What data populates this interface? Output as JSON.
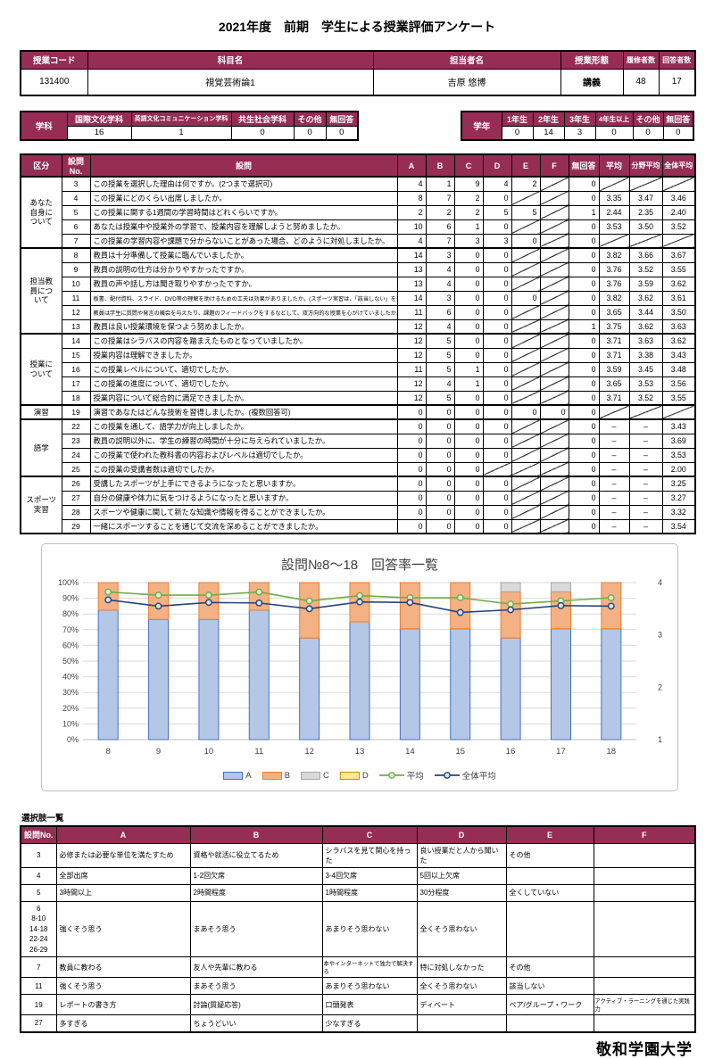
{
  "page": {
    "title": "2021年度　前期　学生による授業評価アンケート",
    "footer": "敬和学園大学"
  },
  "colors": {
    "header_bg": "#962D55",
    "header_text": "#FFFFFF",
    "series_a_fill": "#B4C7E7",
    "series_a_border": "#4472C4",
    "series_b_fill": "#F4B183",
    "series_b_border": "#ED7D31",
    "series_c_fill": "#D9D9D9",
    "series_c_border": "#A6A6A6",
    "series_d_fill": "#FFE699",
    "series_d_border": "#BF9000",
    "avg_line": "#70AD47",
    "overall_avg_line": "#264478"
  },
  "course_info": {
    "headers": [
      "授業コード",
      "科目名",
      "担当者名",
      "授業形態",
      "履修者数",
      "回答者数"
    ],
    "values": [
      "131400",
      "視覚芸術論1",
      "吉原 悠博",
      "講義",
      "48",
      "17"
    ]
  },
  "department_table": {
    "label": "学科",
    "columns": [
      "国際文化学科",
      "英語文化コミュニケーション学科",
      "共生社会学科",
      "その他",
      "無回答"
    ],
    "values": [
      "16",
      "1",
      "0",
      "0",
      "0"
    ]
  },
  "grade_table": {
    "label": "学年",
    "columns": [
      "1年生",
      "2年生",
      "3年生",
      "4年生以上",
      "その他",
      "無回答"
    ],
    "values": [
      "0",
      "14",
      "3",
      "0",
      "0",
      "0"
    ]
  },
  "main_table": {
    "headers": [
      "区分",
      "設問No.",
      "設問",
      "A",
      "B",
      "C",
      "D",
      "E",
      "F",
      "無回答",
      "平均",
      "分野平均",
      "全体平均"
    ],
    "sections": [
      {
        "label": "あなた\n自身に\nついて",
        "rows": [
          {
            "no": "3",
            "q": "この授業を選択した理由は何ですか。(2つまで選択可)",
            "values": [
              "4",
              "1",
              "9",
              "4",
              "2",
              "\\",
              "0",
              "\\",
              "\\",
              "\\"
            ]
          },
          {
            "no": "4",
            "q": "この授業にどのくらい出席しましたか。",
            "values": [
              "8",
              "7",
              "2",
              "0",
              "\\",
              "\\",
              "0",
              "3.35",
              "3.47",
              "3.46"
            ]
          },
          {
            "no": "5",
            "q": "この授業に関する1週間の学習時間はどれくらいですか。",
            "values": [
              "2",
              "2",
              "2",
              "5",
              "5",
              "\\",
              "1",
              "2.44",
              "2.35",
              "2.40"
            ]
          },
          {
            "no": "6",
            "q": "あなたは授業中や授業外の学習で、授業内容を理解しようと努めましたか。",
            "values": [
              "10",
              "6",
              "1",
              "0",
              "\\",
              "\\",
              "0",
              "3.53",
              "3.50",
              "3.52"
            ]
          },
          {
            "no": "7",
            "q": "この授業の学習内容や課題で分からないことがあった場合、どのように対処しましたか。",
            "values": [
              "4",
              "7",
              "3",
              "3",
              "0",
              "\\",
              "0",
              "\\",
              "\\",
              "\\"
            ]
          }
        ]
      },
      {
        "label": "担当教\n員につ\nいて",
        "rows": [
          {
            "no": "8",
            "q": "教員は十分準備して授業に臨んでいましたか。",
            "values": [
              "14",
              "3",
              "0",
              "0",
              "\\",
              "\\",
              "0",
              "3.82",
              "3.66",
              "3.67"
            ]
          },
          {
            "no": "9",
            "q": "教員の説明の仕方は分かりやすかったですか。",
            "values": [
              "13",
              "4",
              "0",
              "0",
              "\\",
              "\\",
              "0",
              "3.76",
              "3.52",
              "3.55"
            ]
          },
          {
            "no": "10",
            "q": "教員の声や話し方は聞き取りやすかったですか。",
            "values": [
              "13",
              "4",
              "0",
              "0",
              "\\",
              "\\",
              "0",
              "3.76",
              "3.59",
              "3.62"
            ]
          },
          {
            "no": "11",
            "q": "板書、配付資料、スライド、DVD等の理解を助けるための工夫は効果がありましたか。(スポーツ実習は、「該当しない」を選んでください)",
            "values": [
              "14",
              "3",
              "0",
              "0",
              "0",
              "\\",
              "0",
              "3.82",
              "3.62",
              "3.61"
            ]
          },
          {
            "no": "12",
            "q": "教員は学生に質問や発言の機会を与えたり、課題のフィードバックをするなどして、双方向的な授業を心がけていましたか。",
            "values": [
              "11",
              "6",
              "0",
              "0",
              "\\",
              "\\",
              "0",
              "3.65",
              "3.44",
              "3.50"
            ]
          },
          {
            "no": "13",
            "q": "教員は良い授業環境を保つよう努めましたか。",
            "values": [
              "12",
              "4",
              "0",
              "0",
              "\\",
              "\\",
              "1",
              "3.75",
              "3.62",
              "3.63"
            ]
          }
        ]
      },
      {
        "label": "授業に\nついて",
        "rows": [
          {
            "no": "14",
            "q": "この授業はシラバスの内容を踏まえたものとなっていましたか。",
            "values": [
              "12",
              "5",
              "0",
              "0",
              "\\",
              "\\",
              "0",
              "3.71",
              "3.63",
              "3.62"
            ]
          },
          {
            "no": "15",
            "q": "授業内容は理解できましたか。",
            "values": [
              "12",
              "5",
              "0",
              "0",
              "\\",
              "\\",
              "0",
              "3.71",
              "3.38",
              "3.43"
            ]
          },
          {
            "no": "16",
            "q": "この授業レベルについて、適切でしたか。",
            "values": [
              "11",
              "5",
              "1",
              "0",
              "\\",
              "\\",
              "0",
              "3.59",
              "3.45",
              "3.48"
            ]
          },
          {
            "no": "17",
            "q": "この授業の進度について、適切でしたか。",
            "values": [
              "12",
              "4",
              "1",
              "0",
              "\\",
              "\\",
              "0",
              "3.65",
              "3.53",
              "3.56"
            ]
          },
          {
            "no": "18",
            "q": "授業内容について総合的に満足できましたか。",
            "values": [
              "12",
              "5",
              "0",
              "0",
              "\\",
              "\\",
              "0",
              "3.71",
              "3.52",
              "3.55"
            ]
          }
        ]
      },
      {
        "label": "演習",
        "rows": [
          {
            "no": "19",
            "q": "演習であなたはどんな技術を習得しましたか。(複数回答可)",
            "values": [
              "0",
              "0",
              "0",
              "0",
              "0",
              "0",
              "0",
              "\\",
              "\\",
              "\\"
            ]
          }
        ]
      },
      {
        "label": "語学",
        "rows": [
          {
            "no": "22",
            "q": "この授業を通して、語学力が向上しましたか。",
            "values": [
              "0",
              "0",
              "0",
              "0",
              "\\",
              "\\",
              "0",
              "–",
              "–",
              "3.43"
            ]
          },
          {
            "no": "23",
            "q": "教員の説明以外に、学生の練習の時間が十分に与えられていましたか。",
            "values": [
              "0",
              "0",
              "0",
              "0",
              "\\",
              "\\",
              "0",
              "–",
              "–",
              "3.69"
            ]
          },
          {
            "no": "24",
            "q": "この授業で使われた教科書の内容およびレベルは適切でしたか。",
            "values": [
              "0",
              "0",
              "0",
              "0",
              "\\",
              "\\",
              "0",
              "–",
              "–",
              "3.53"
            ]
          },
          {
            "no": "25",
            "q": "この授業の受講者数は適切でしたか。",
            "values": [
              "0",
              "0",
              "0",
              "\\",
              "\\",
              "\\",
              "0",
              "–",
              "–",
              "2.00"
            ]
          }
        ]
      },
      {
        "label": "スポーツ\n実習",
        "rows": [
          {
            "no": "26",
            "q": "受講したスポーツが上手にできるようになったと思いますか。",
            "values": [
              "0",
              "0",
              "0",
              "0",
              "\\",
              "\\",
              "0",
              "–",
              "–",
              "3.25"
            ]
          },
          {
            "no": "27",
            "q": "自分の健康や体力に気をつけるようになったと思いますか。",
            "values": [
              "0",
              "0",
              "0",
              "0",
              "\\",
              "\\",
              "0",
              "–",
              "–",
              "3.27"
            ]
          },
          {
            "no": "28",
            "q": "スポーツや健康に関して新たな知識や情報を得ることができましたか。",
            "values": [
              "0",
              "0",
              "0",
              "0",
              "\\",
              "\\",
              "0",
              "–",
              "–",
              "3.32"
            ]
          },
          {
            "no": "29",
            "q": "一緒にスポーツすることを通じて交流を深めることができましたか。",
            "values": [
              "0",
              "0",
              "0",
              "0",
              "\\",
              "\\",
              "0",
              "–",
              "–",
              "3.54"
            ]
          }
        ]
      }
    ]
  },
  "chart_data": {
    "type": "bar",
    "subtype": "100%-stacked-bar-with-lines",
    "title": "設問№8～18　回答率一覧",
    "categories": [
      "8",
      "9",
      "10",
      "11",
      "12",
      "13",
      "14",
      "15",
      "16",
      "17",
      "18"
    ],
    "bar_series": [
      {
        "name": "A",
        "fill": "#B4C7E7",
        "border": "#4472C4",
        "values": [
          82.4,
          76.5,
          76.5,
          82.4,
          64.7,
          75.0,
          70.6,
          70.6,
          64.7,
          70.6,
          70.6
        ]
      },
      {
        "name": "B",
        "fill": "#F4B183",
        "border": "#ED7D31",
        "values": [
          17.6,
          23.5,
          23.5,
          17.6,
          35.3,
          25.0,
          29.4,
          29.4,
          29.4,
          23.5,
          29.4
        ]
      },
      {
        "name": "C",
        "fill": "#D9D9D9",
        "border": "#A6A6A6",
        "values": [
          0,
          0,
          0,
          0,
          0,
          0,
          0,
          0,
          5.9,
          5.9,
          0
        ]
      },
      {
        "name": "D",
        "fill": "#FFE699",
        "border": "#BF9000",
        "values": [
          0,
          0,
          0,
          0,
          0,
          0,
          0,
          0,
          0,
          0,
          0
        ]
      }
    ],
    "line_series": [
      {
        "name": "平均",
        "color": "#70AD47",
        "marker_fill": "#E2EFDA",
        "values": [
          3.82,
          3.76,
          3.76,
          3.82,
          3.65,
          3.75,
          3.71,
          3.71,
          3.59,
          3.65,
          3.71
        ]
      },
      {
        "name": "全体平均",
        "color": "#264478",
        "marker_fill": "#DAE3F3",
        "values": [
          3.67,
          3.55,
          3.62,
          3.61,
          3.5,
          3.63,
          3.62,
          3.43,
          3.48,
          3.56,
          3.55
        ]
      }
    ],
    "y_left": {
      "min": 0,
      "max": 100,
      "step": 10,
      "format": "percent",
      "tick_labels": [
        "0%",
        "10%",
        "20%",
        "30%",
        "40%",
        "50%",
        "60%",
        "70%",
        "80%",
        "90%",
        "100%"
      ]
    },
    "y_right": {
      "min": 1,
      "max": 4,
      "ticks": [
        1,
        2,
        3,
        4
      ]
    },
    "grid": true,
    "legend_position": "bottom"
  },
  "choices": {
    "title": "選択肢一覧",
    "headers": [
      "設問No.",
      "A",
      "B",
      "C",
      "D",
      "E",
      "F"
    ],
    "rows": [
      {
        "no": "3",
        "cells": [
          "必修または必要な単位を満たすため",
          "資格や就活に役立てるため",
          "シラバスを見て関心を持った",
          "良い授業だと人から聞いた",
          "その他",
          ""
        ]
      },
      {
        "no": "4",
        "cells": [
          "全部出席",
          "1-2回欠席",
          "3-4回欠席",
          "5回以上欠席",
          "",
          ""
        ]
      },
      {
        "no": "5",
        "cells": [
          "3時間以上",
          "2時間程度",
          "1時間程度",
          "30分程度",
          "全くしていない",
          ""
        ]
      },
      {
        "no": "6\n8-10\n14-18\n22-24\n26-29",
        "cells": [
          "強くそう思う",
          "まあそう思う",
          "あまりそう思わない",
          "全くそう思わない",
          "",
          ""
        ]
      },
      {
        "no": "7",
        "cells": [
          "教員に教わる",
          "友人や先輩に教わる",
          "本やインターネットで独力で解決する",
          "特に対処しなかった",
          "その他",
          ""
        ]
      },
      {
        "no": "11",
        "cells": [
          "強くそう思う",
          "まあそう思う",
          "あまりそう思わない",
          "全くそう思わない",
          "該当しない",
          ""
        ]
      },
      {
        "no": "19",
        "cells": [
          "レポートの書き方",
          "討論(質疑応答)",
          "口頭発表",
          "ディベート",
          "ペア/グループ・ワーク",
          "アクティブ・ラーニングを通じた実践力"
        ]
      },
      {
        "no": "27",
        "cells": [
          "多すぎる",
          "ちょうどいい",
          "少なすぎる",
          "",
          "",
          ""
        ]
      }
    ]
  }
}
